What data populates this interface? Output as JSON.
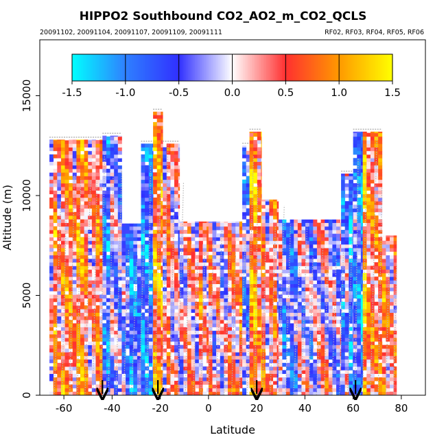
{
  "chart_data": {
    "type": "heatmap",
    "title": "HIPPO2 Southbound CO2_AO2_m_CO2_QCLS",
    "subtitle_left": "20091102, 20091104, 20091107, 20091109, 20091111",
    "subtitle_right": "RF02, RF03, RF04, RF05, RF06",
    "xlabel": "Latitude",
    "ylabel": "Altitude (m)",
    "xlim": [
      -70,
      90
    ],
    "ylim": [
      0,
      17800
    ],
    "x_ticks": [
      -60,
      -40,
      -20,
      0,
      20,
      40,
      60,
      80
    ],
    "x_tick_labels": [
      "-60",
      "-40",
      "-20",
      "0",
      "20",
      "40",
      "60",
      "80"
    ],
    "y_ticks": [
      0,
      5000,
      10000,
      15000
    ],
    "y_tick_labels": [
      "0",
      "5000",
      "10000",
      "15000"
    ],
    "colorbar": {
      "range": [
        -1.5,
        1.5
      ],
      "ticks": [
        -1.5,
        -1.0,
        -0.5,
        0.0,
        0.5,
        1.0,
        1.5
      ],
      "tick_labels": [
        "-1.5",
        "-1.0",
        "-0.5",
        "0.0",
        "0.5",
        "1.0",
        "1.5"
      ],
      "colors": [
        "#00ffff",
        "#2f80ff",
        "#3030ff",
        "#ffffff",
        "#ff3030",
        "#ff9900",
        "#ffff00"
      ]
    },
    "arrow_latitudes": [
      -44,
      -21,
      20,
      61
    ],
    "profiles": [
      {
        "lat_min": -66,
        "lat_max": -44,
        "alt_top": 12800,
        "bias": 0.45
      },
      {
        "lat_min": -44,
        "lat_max": -36,
        "alt_top": 13000,
        "bias": -0.55
      },
      {
        "lat_min": -36,
        "lat_max": -28,
        "alt_top": 8600,
        "bias": -0.7
      },
      {
        "lat_min": -28,
        "lat_max": -23,
        "alt_top": 12600,
        "bias": -0.8
      },
      {
        "lat_min": -23,
        "lat_max": -19,
        "alt_top": 14200,
        "bias": 1.0
      },
      {
        "lat_min": -19,
        "lat_max": -12,
        "alt_top": 12600,
        "bias": 0.35
      },
      {
        "lat_min": -12,
        "lat_max": 0,
        "alt_top": 8700,
        "bias": 0.3
      },
      {
        "lat_min": 0,
        "lat_max": 14,
        "alt_top": 8700,
        "bias": 0.2
      },
      {
        "lat_min": 14,
        "lat_max": 17,
        "alt_top": 12500,
        "bias": -0.6
      },
      {
        "lat_min": 17,
        "lat_max": 22,
        "alt_top": 13200,
        "bias": 0.8
      },
      {
        "lat_min": 22,
        "lat_max": 29,
        "alt_top": 9800,
        "bias": 0.15
      },
      {
        "lat_min": 29,
        "lat_max": 55,
        "alt_top": 8800,
        "bias": -0.25
      },
      {
        "lat_min": 55,
        "lat_max": 60,
        "alt_top": 11100,
        "bias": -0.6
      },
      {
        "lat_min": 60,
        "lat_max": 64,
        "alt_top": 13200,
        "bias": -0.9
      },
      {
        "lat_min": 64,
        "lat_max": 72,
        "alt_top": 13200,
        "bias": 0.7
      },
      {
        "lat_min": 72,
        "lat_max": 78,
        "alt_top": 8000,
        "bias": 0.55
      }
    ]
  }
}
